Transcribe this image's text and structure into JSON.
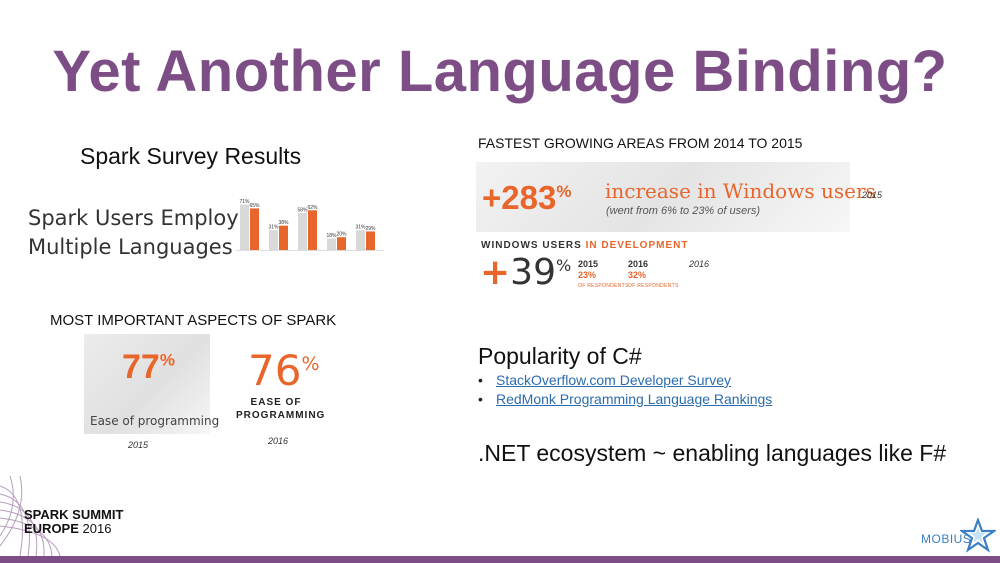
{
  "title": "Yet Another Language Binding?",
  "left": {
    "survey_heading": "Spark Survey Results",
    "multi_lang_line1": "Spark Users Employ",
    "multi_lang_line2": "Multiple Languages",
    "bar_chart": {
      "pairs": [
        [
          71,
          65
        ],
        [
          31,
          38
        ],
        [
          58,
          62
        ],
        [
          18,
          20
        ],
        [
          31,
          29
        ]
      ],
      "labels": [
        "71%",
        "65%",
        "31%",
        "38%",
        "58%",
        "62%",
        "18%",
        "20%",
        "31%",
        "29%"
      ]
    },
    "aspects_heading": "MOST IMPORTANT ASPECTS OF SPARK",
    "pct_2015": "77",
    "ease_2015": "Ease of programming",
    "year_2015": "2015",
    "pct_2016": "76",
    "ease_2016_line1": "EASE OF",
    "ease_2016_line2": "PROGRAMMING",
    "year_2016": "2016"
  },
  "right": {
    "growing_heading": "FASTEST GROWING AREAS FROM 2014 TO 2015",
    "pct_283": "+283",
    "increase_text": "increase in Windows users",
    "went_from": "(went from 6% to 23% of users)",
    "year_2015": "2015",
    "windows_users": "WINDOWS USERS ",
    "in_development": "IN DEVELOPMENT",
    "plus": "+",
    "pct_39": "39",
    "col_2015_year": "2015",
    "col_2015_value": "23%",
    "col_2016_year": "2016",
    "col_2016_value": "32%",
    "respondents": "OF RESPONDENTS",
    "year_2016": "2016",
    "csharp_heading": "Popularity of C#",
    "links": [
      {
        "bullet": "•",
        "label": "StackOverflow.com Developer Survey"
      },
      {
        "bullet": "•",
        "label": "RedMonk Programming Language Rankings"
      }
    ],
    "dotnet": ".NET ecosystem ~ enabling languages like F#"
  },
  "percent_sign": "%",
  "footer": {
    "summit_line1": "SPARK SUMMIT",
    "summit_line2": "EUROPE",
    "summit_year": "2016",
    "mobius": "MOBIUS"
  },
  "colors": {
    "title": "#7d4e86",
    "accent": "#e8652b",
    "link": "#2b6cb0",
    "bar": "#7d4e86"
  },
  "icons": [
    "spark-summit-logo-icon",
    "mobius-star-icon"
  ]
}
